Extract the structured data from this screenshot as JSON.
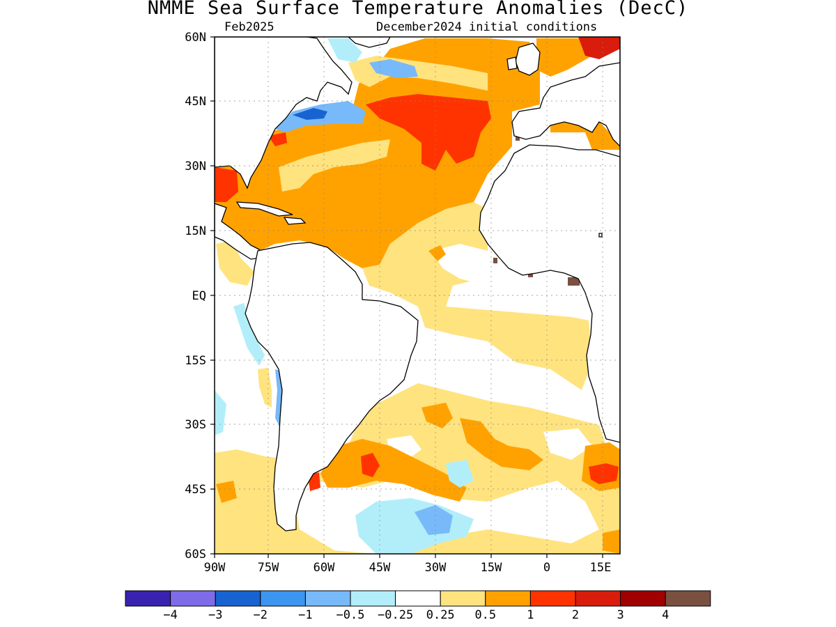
{
  "title": "NMME Sea Surface Temperature Anomalies (DecC)",
  "subtitle_left": "Feb2025",
  "subtitle_right": "December2024 initial conditions",
  "lat_labels": [
    "60N",
    "45N",
    "30N",
    "15N",
    "EQ",
    "15S",
    "30S",
    "45S",
    "60S"
  ],
  "lon_labels": [
    "90W",
    "75W",
    "60W",
    "45W",
    "30W",
    "15W",
    "0",
    "15E"
  ],
  "colorbar": {
    "colors": [
      "#3a22b0",
      "#7e6be8",
      "#1763d1",
      "#3c95f0",
      "#78b9f9",
      "#b2eefa",
      "#ffffff",
      "#ffe37f",
      "#ffa200",
      "#ff3300",
      "#d91c0c",
      "#a10000",
      "#7a5040"
    ],
    "labels": [
      "-4",
      "-3",
      "-2",
      "-1",
      "-0.5",
      "-0.25",
      "0.25",
      "0.5",
      "1",
      "2",
      "3",
      "4"
    ]
  }
}
